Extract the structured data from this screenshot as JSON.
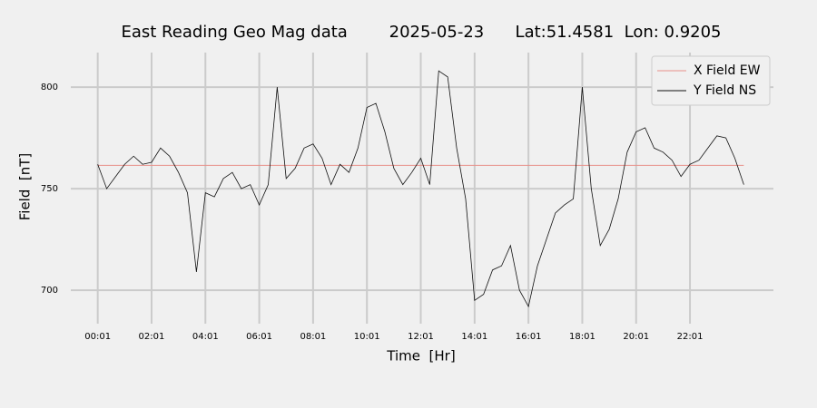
{
  "chart_data": {
    "type": "line",
    "title": "East Reading Geo Mag data        2025-05-23      Lat:51.4581  Lon: 0.9205",
    "xlabel": "Time  [Hr]",
    "ylabel": "Field  [nT]",
    "xlim": [
      -59,
      1507
    ],
    "ylim": [
      688,
      817
    ],
    "xticks": [
      {
        "value": 1,
        "label": "00:01"
      },
      {
        "value": 121,
        "label": "02:01"
      },
      {
        "value": 241,
        "label": "04:01"
      },
      {
        "value": 361,
        "label": "06:01"
      },
      {
        "value": 481,
        "label": "08:01"
      },
      {
        "value": 601,
        "label": "10:01"
      },
      {
        "value": 721,
        "label": "12:01"
      },
      {
        "value": 841,
        "label": "14:01"
      },
      {
        "value": 961,
        "label": "16:01"
      },
      {
        "value": 1081,
        "label": "18:01"
      },
      {
        "value": 1201,
        "label": "20:01"
      },
      {
        "value": 1321,
        "label": "22:01"
      }
    ],
    "yticks": [
      700,
      750,
      800
    ],
    "grid": true,
    "legend": "upper right",
    "series": [
      {
        "name": "X Field EW",
        "color": "#e8908a",
        "x": [
          1,
          1441
        ],
        "values": [
          761.5,
          761.5
        ]
      },
      {
        "name": "Y Field NS",
        "color": "#111111",
        "x": [
          1,
          21,
          41,
          61,
          81,
          101,
          121,
          141,
          161,
          181,
          201,
          221,
          241,
          261,
          281,
          301,
          321,
          341,
          361,
          381,
          401,
          421,
          441,
          461,
          481,
          501,
          521,
          541,
          561,
          581,
          601,
          621,
          641,
          661,
          681,
          701,
          721,
          741,
          761,
          781,
          801,
          821,
          841,
          861,
          881,
          901,
          921,
          941,
          961,
          981,
          1001,
          1021,
          1041,
          1061,
          1081,
          1101,
          1121,
          1141,
          1161,
          1181,
          1201,
          1221,
          1241,
          1261,
          1281,
          1301,
          1321,
          1341,
          1361,
          1381,
          1401,
          1421,
          1441
        ],
        "values": [
          762,
          750,
          756,
          762,
          766,
          762,
          763,
          770,
          766,
          758,
          748,
          709,
          748,
          746,
          755,
          758,
          750,
          752,
          742,
          752,
          800,
          755,
          760,
          770,
          772,
          765,
          752,
          762,
          758,
          770,
          790,
          792,
          778,
          760,
          752,
          758,
          765,
          752,
          808,
          805,
          770,
          745,
          695,
          698,
          710,
          712,
          722,
          700,
          692,
          712,
          725,
          738,
          742,
          745,
          800,
          750,
          722,
          730,
          745,
          768,
          778,
          780,
          770,
          768,
          764,
          756,
          762,
          764,
          770,
          776,
          775,
          765,
          752
        ]
      }
    ]
  }
}
